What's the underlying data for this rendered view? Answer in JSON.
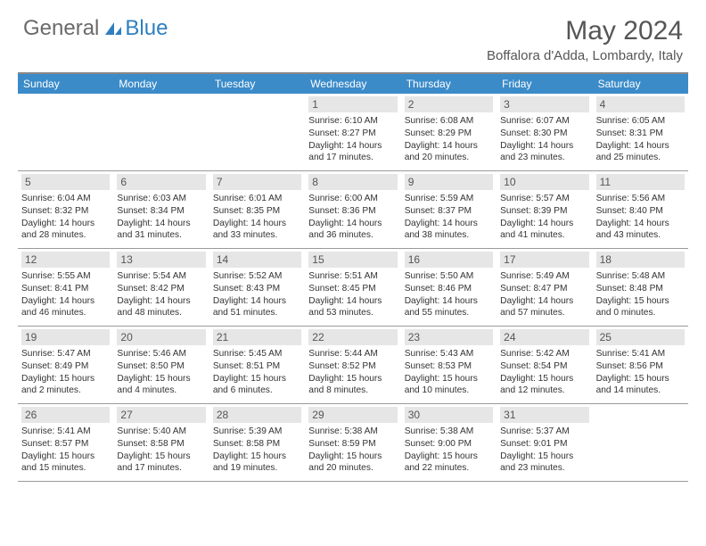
{
  "brand": {
    "part1": "General",
    "part2": "Blue",
    "accent_color": "#2f7fc0",
    "muted_color": "#6a6a6a"
  },
  "title": "May 2024",
  "location": "Boffalora d'Adda, Lombardy, Italy",
  "day_header_color": "#3b8bc9",
  "day_num_bg": "#e6e6e6",
  "days_of_week": [
    "Sunday",
    "Monday",
    "Tuesday",
    "Wednesday",
    "Thursday",
    "Friday",
    "Saturday"
  ],
  "weeks": [
    [
      {
        "empty": true
      },
      {
        "empty": true
      },
      {
        "empty": true
      },
      {
        "num": "1",
        "sunrise": "6:10 AM",
        "sunset": "8:27 PM",
        "daylight": "14 hours and 17 minutes."
      },
      {
        "num": "2",
        "sunrise": "6:08 AM",
        "sunset": "8:29 PM",
        "daylight": "14 hours and 20 minutes."
      },
      {
        "num": "3",
        "sunrise": "6:07 AM",
        "sunset": "8:30 PM",
        "daylight": "14 hours and 23 minutes."
      },
      {
        "num": "4",
        "sunrise": "6:05 AM",
        "sunset": "8:31 PM",
        "daylight": "14 hours and 25 minutes."
      }
    ],
    [
      {
        "num": "5",
        "sunrise": "6:04 AM",
        "sunset": "8:32 PM",
        "daylight": "14 hours and 28 minutes."
      },
      {
        "num": "6",
        "sunrise": "6:03 AM",
        "sunset": "8:34 PM",
        "daylight": "14 hours and 31 minutes."
      },
      {
        "num": "7",
        "sunrise": "6:01 AM",
        "sunset": "8:35 PM",
        "daylight": "14 hours and 33 minutes."
      },
      {
        "num": "8",
        "sunrise": "6:00 AM",
        "sunset": "8:36 PM",
        "daylight": "14 hours and 36 minutes."
      },
      {
        "num": "9",
        "sunrise": "5:59 AM",
        "sunset": "8:37 PM",
        "daylight": "14 hours and 38 minutes."
      },
      {
        "num": "10",
        "sunrise": "5:57 AM",
        "sunset": "8:39 PM",
        "daylight": "14 hours and 41 minutes."
      },
      {
        "num": "11",
        "sunrise": "5:56 AM",
        "sunset": "8:40 PM",
        "daylight": "14 hours and 43 minutes."
      }
    ],
    [
      {
        "num": "12",
        "sunrise": "5:55 AM",
        "sunset": "8:41 PM",
        "daylight": "14 hours and 46 minutes."
      },
      {
        "num": "13",
        "sunrise": "5:54 AM",
        "sunset": "8:42 PM",
        "daylight": "14 hours and 48 minutes."
      },
      {
        "num": "14",
        "sunrise": "5:52 AM",
        "sunset": "8:43 PM",
        "daylight": "14 hours and 51 minutes."
      },
      {
        "num": "15",
        "sunrise": "5:51 AM",
        "sunset": "8:45 PM",
        "daylight": "14 hours and 53 minutes."
      },
      {
        "num": "16",
        "sunrise": "5:50 AM",
        "sunset": "8:46 PM",
        "daylight": "14 hours and 55 minutes."
      },
      {
        "num": "17",
        "sunrise": "5:49 AM",
        "sunset": "8:47 PM",
        "daylight": "14 hours and 57 minutes."
      },
      {
        "num": "18",
        "sunrise": "5:48 AM",
        "sunset": "8:48 PM",
        "daylight": "15 hours and 0 minutes."
      }
    ],
    [
      {
        "num": "19",
        "sunrise": "5:47 AM",
        "sunset": "8:49 PM",
        "daylight": "15 hours and 2 minutes."
      },
      {
        "num": "20",
        "sunrise": "5:46 AM",
        "sunset": "8:50 PM",
        "daylight": "15 hours and 4 minutes."
      },
      {
        "num": "21",
        "sunrise": "5:45 AM",
        "sunset": "8:51 PM",
        "daylight": "15 hours and 6 minutes."
      },
      {
        "num": "22",
        "sunrise": "5:44 AM",
        "sunset": "8:52 PM",
        "daylight": "15 hours and 8 minutes."
      },
      {
        "num": "23",
        "sunrise": "5:43 AM",
        "sunset": "8:53 PM",
        "daylight": "15 hours and 10 minutes."
      },
      {
        "num": "24",
        "sunrise": "5:42 AM",
        "sunset": "8:54 PM",
        "daylight": "15 hours and 12 minutes."
      },
      {
        "num": "25",
        "sunrise": "5:41 AM",
        "sunset": "8:56 PM",
        "daylight": "15 hours and 14 minutes."
      }
    ],
    [
      {
        "num": "26",
        "sunrise": "5:41 AM",
        "sunset": "8:57 PM",
        "daylight": "15 hours and 15 minutes."
      },
      {
        "num": "27",
        "sunrise": "5:40 AM",
        "sunset": "8:58 PM",
        "daylight": "15 hours and 17 minutes."
      },
      {
        "num": "28",
        "sunrise": "5:39 AM",
        "sunset": "8:58 PM",
        "daylight": "15 hours and 19 minutes."
      },
      {
        "num": "29",
        "sunrise": "5:38 AM",
        "sunset": "8:59 PM",
        "daylight": "15 hours and 20 minutes."
      },
      {
        "num": "30",
        "sunrise": "5:38 AM",
        "sunset": "9:00 PM",
        "daylight": "15 hours and 22 minutes."
      },
      {
        "num": "31",
        "sunrise": "5:37 AM",
        "sunset": "9:01 PM",
        "daylight": "15 hours and 23 minutes."
      },
      {
        "empty": true
      }
    ]
  ]
}
